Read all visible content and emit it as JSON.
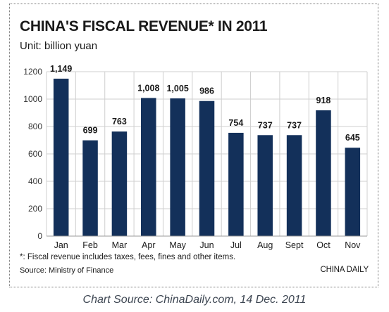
{
  "chart_data": {
    "type": "bar",
    "title": "CHINA'S FISCAL REVENUE* IN 2011",
    "subtitle": "Unit: billion yuan",
    "categories": [
      "Jan",
      "Feb",
      "Mar",
      "Apr",
      "May",
      "Jun",
      "Jul",
      "Aug",
      "Sept",
      "Oct",
      "Nov"
    ],
    "values": [
      1149,
      699,
      763,
      1008,
      1005,
      986,
      754,
      737,
      737,
      918,
      645
    ],
    "data_labels": [
      "1,149",
      "699",
      "763",
      "1,008",
      "1,005",
      "986",
      "754",
      "737",
      "737",
      "918",
      "645"
    ],
    "ylim": [
      0,
      1200
    ],
    "yticks": [
      0,
      200,
      400,
      600,
      800,
      1000,
      1200
    ],
    "xlabel": "",
    "ylabel": "",
    "grid": true,
    "bar_color": "#13305a"
  },
  "footnote": "*: Fiscal revenue includes taxes, fees, fines and other items.",
  "source": "Source: Ministry of Finance",
  "brand": "CHINA DAILY",
  "caption": "Chart Source: ChinaDaily.com, 14 Dec. 2011"
}
